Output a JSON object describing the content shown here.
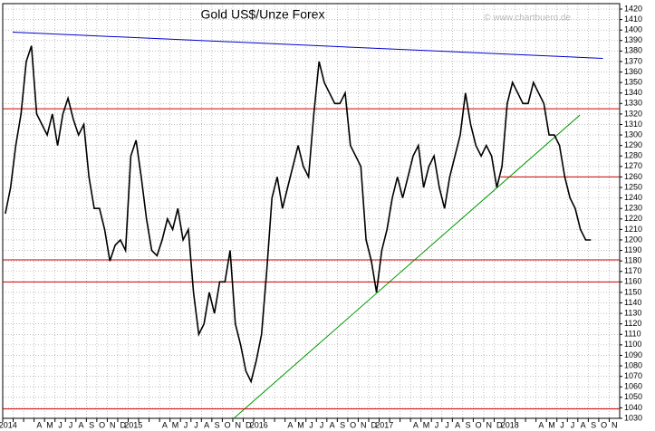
{
  "chart_data": {
    "type": "line",
    "title": "Gold US$/Unze Forex",
    "watermark": "© www.chartbuero.de",
    "categories": [
      "2014",
      null,
      null,
      "A",
      "M",
      "J",
      "J",
      "A",
      "S",
      "O",
      "N",
      "D",
      "2015",
      null,
      null,
      "A",
      "M",
      "J",
      "J",
      "A",
      "S",
      "O",
      "N",
      "D",
      "2016",
      null,
      null,
      "A",
      "M",
      "J",
      "J",
      "A",
      "S",
      "O",
      "N",
      "D",
      "2017",
      null,
      null,
      "A",
      "M",
      "J",
      "J",
      "A",
      "S",
      "O",
      "N",
      "D",
      "2018",
      null,
      null,
      "A",
      "M",
      "J",
      "J",
      "A",
      "S",
      "O",
      "N"
    ],
    "xlim": [
      0,
      59
    ],
    "ylim": [
      1030,
      1420
    ],
    "yticks": [
      1030,
      1040,
      1050,
      1060,
      1070,
      1080,
      1090,
      1100,
      1110,
      1120,
      1130,
      1140,
      1150,
      1160,
      1170,
      1180,
      1190,
      1200,
      1210,
      1220,
      1230,
      1240,
      1250,
      1260,
      1270,
      1280,
      1290,
      1300,
      1310,
      1320,
      1330,
      1340,
      1350,
      1360,
      1370,
      1380,
      1390,
      1400,
      1410,
      1420
    ],
    "grid": true,
    "series": [
      {
        "name": "Gold",
        "color": "#000000",
        "x": [
          0.25,
          0.75,
          1.25,
          1.75,
          2.25,
          2.75,
          3.25,
          3.75,
          4.25,
          4.75,
          5.25,
          5.75,
          6.25,
          6.75,
          7.25,
          7.75,
          8.25,
          8.75,
          9.25,
          9.75,
          10.25,
          10.75,
          11.25,
          11.75,
          12.25,
          12.75,
          13.25,
          13.75,
          14.25,
          14.75,
          15.25,
          15.75,
          16.25,
          16.75,
          17.25,
          17.75,
          18.25,
          18.75,
          19.25,
          19.75,
          20.25,
          20.75,
          21.25,
          21.75,
          22.25,
          22.75,
          23.25,
          23.75,
          24.25,
          24.75,
          25.25,
          25.75,
          26.25,
          26.75,
          27.25,
          27.75,
          28.25,
          28.75,
          29.25,
          29.75,
          30.25,
          30.75,
          31.25,
          31.75,
          32.25,
          32.75,
          33.25,
          33.75,
          34.25,
          34.75,
          35.25,
          35.75,
          36.25,
          36.75,
          37.25,
          37.75,
          38.25,
          38.75,
          39.25,
          39.75,
          40.25,
          40.75,
          41.25,
          41.75,
          42.25,
          42.75,
          43.25,
          43.75,
          44.25,
          44.75,
          45.25,
          45.75,
          46.25,
          46.75,
          47.25,
          47.75,
          48.25,
          48.75,
          49.25,
          49.75,
          50.25,
          50.75,
          51.25,
          51.75,
          52.25,
          52.75,
          53.25,
          53.75,
          54.25,
          54.75,
          55.25,
          55.75,
          56.25
        ],
        "values": [
          1225,
          1250,
          1290,
          1320,
          1370,
          1385,
          1320,
          1310,
          1300,
          1320,
          1290,
          1320,
          1335,
          1315,
          1300,
          1310,
          1260,
          1230,
          1230,
          1210,
          1180,
          1195,
          1200,
          1190,
          1280,
          1295,
          1260,
          1220,
          1190,
          1185,
          1200,
          1220,
          1210,
          1230,
          1200,
          1210,
          1150,
          1110,
          1120,
          1150,
          1130,
          1160,
          1160,
          1190,
          1120,
          1100,
          1075,
          1065,
          1085,
          1110,
          1170,
          1240,
          1260,
          1230,
          1250,
          1270,
          1290,
          1270,
          1260,
          1320,
          1370,
          1350,
          1340,
          1330,
          1330,
          1340,
          1290,
          1280,
          1270,
          1200,
          1180,
          1150,
          1190,
          1210,
          1240,
          1260,
          1240,
          1260,
          1280,
          1290,
          1250,
          1270,
          1280,
          1250,
          1230,
          1260,
          1280,
          1300,
          1340,
          1310,
          1290,
          1280,
          1290,
          1280,
          1250,
          1270,
          1330,
          1350,
          1340,
          1330,
          1330,
          1350,
          1340,
          1330,
          1300,
          1300,
          1290,
          1260,
          1240,
          1230,
          1210,
          1200,
          1200
        ]
      }
    ],
    "trendlines": [
      {
        "color": "#0000cc",
        "x": [
          0.95,
          57.4
        ],
        "values": [
          1398,
          1373
        ]
      },
      {
        "color": "#009900",
        "x": [
          22.1,
          55.2
        ],
        "values": [
          1030,
          1319
        ]
      },
      {
        "color": "#cc0000",
        "x": [
          0,
          59
        ],
        "values": [
          1325,
          1325
        ]
      },
      {
        "color": "#cc0000",
        "x": [
          47.6,
          59
        ],
        "values": [
          1260,
          1260
        ]
      },
      {
        "color": "#cc0000",
        "x": [
          0,
          59
        ],
        "values": [
          1181,
          1181
        ]
      },
      {
        "color": "#cc0000",
        "x": [
          0,
          59
        ],
        "values": [
          1160,
          1160
        ]
      },
      {
        "color": "#cc0000",
        "x": [
          0,
          59
        ],
        "values": [
          1039,
          1039
        ]
      }
    ]
  }
}
